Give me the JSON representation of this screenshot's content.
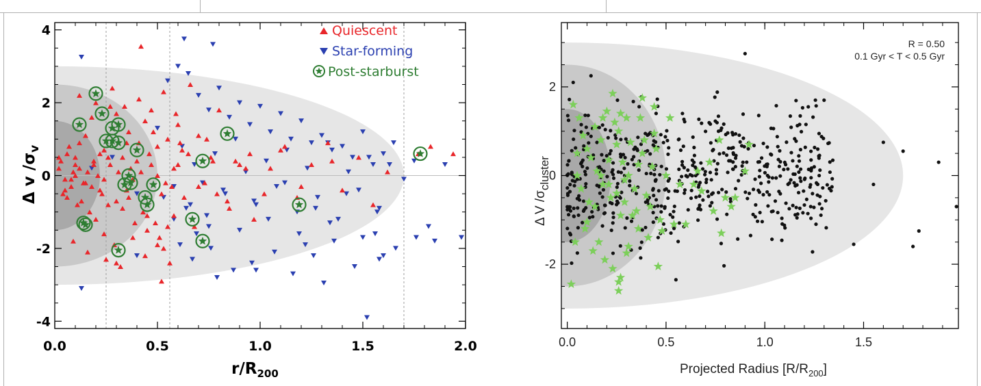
{
  "colors": {
    "quiescent": "#e8262a",
    "star_forming": "#2a3fb0",
    "post_starburst": "#2e7d32",
    "galaxy_dot": "#111111",
    "green_star": "#7ccf5a",
    "zone_inner": "#a9a9a9",
    "zone_middle": "#c9c9c9",
    "zone_outer": "#e6e6e6"
  },
  "chart_data": [
    {
      "type": "scatter",
      "xlabel": "r/R",
      "xlabel_sub": "200",
      "ylabel_main": "Δ v /σ",
      "ylabel_sub": "v",
      "xlim": [
        0.0,
        2.0
      ],
      "ylim": [
        -4.2,
        4.2
      ],
      "x_ticks": [
        "0.0",
        "0.5",
        "1.0",
        "1.5",
        "2.0"
      ],
      "y_ticks": [
        "-4",
        "-2",
        "0",
        "2",
        "4"
      ],
      "legend_position": "top-right",
      "legend": [
        "Quiescent",
        "Star-forming",
        "Post-starburst"
      ],
      "zones": [
        {
          "x_max": 1.7,
          "y_half": 3.0
        },
        {
          "x_max": 0.5,
          "y_half": 2.5
        },
        {
          "x_max": 0.22,
          "y_half": 1.5
        }
      ],
      "dashed_x": [
        0.25,
        0.56,
        1.7
      ],
      "series": [
        {
          "name": "Post-starburst",
          "x": [
            0.2,
            0.23,
            0.12,
            0.28,
            0.31,
            0.25,
            0.28,
            0.31,
            0.4,
            0.84,
            0.72,
            0.36,
            0.34,
            0.37,
            0.48,
            0.44,
            0.45,
            0.67,
            0.72,
            0.14,
            0.15,
            0.31,
            1.19,
            1.78
          ],
          "y": [
            2.25,
            1.7,
            1.4,
            1.3,
            1.4,
            0.95,
            0.95,
            0.9,
            0.7,
            1.15,
            0.4,
            0.0,
            -0.25,
            -0.2,
            -0.25,
            -0.6,
            -0.8,
            -1.2,
            -1.8,
            -1.3,
            -1.35,
            -2.05,
            -0.8,
            0.6
          ]
        },
        {
          "name": "Quiescent",
          "x": [
            0.42,
            0.02,
            0.05,
            0.03,
            0.06,
            0.08,
            0.09,
            0.1,
            0.12,
            0.15,
            0.18,
            0.19,
            0.21,
            0.22,
            0.24,
            0.27,
            0.3,
            0.33,
            0.36,
            0.38,
            0.41,
            0.44,
            0.47,
            0.5,
            0.52,
            0.55,
            0.58,
            0.6,
            0.63,
            0.65,
            0.7,
            0.73,
            0.77,
            0.8,
            0.85,
            0.9,
            0.95,
            0.13,
            0.17,
            0.2,
            0.24,
            0.29,
            0.33,
            0.39,
            0.45,
            0.53,
            0.58,
            0.05,
            0.1,
            0.14,
            0.07,
            0.11,
            0.16,
            0.23,
            0.26,
            0.3,
            0.35,
            0.37,
            0.43,
            0.48,
            0.51,
            0.57,
            0.62,
            0.68,
            0.74,
            0.79,
            0.88,
            0.97,
            1.05,
            1.12,
            1.18,
            1.25,
            1.33,
            1.4,
            1.48,
            1.55,
            1.62,
            1.77,
            1.83,
            1.94,
            0.02,
            0.04,
            0.08,
            0.12,
            0.18,
            0.22,
            0.26,
            0.31,
            0.36,
            0.4,
            0.45,
            0.5,
            0.55,
            0.6,
            0.12,
            0.2,
            0.28,
            0.34,
            0.41,
            0.47,
            0.53,
            0.59,
            0.66,
            0.09,
            0.16,
            0.25,
            0.32,
            0.38,
            0.44,
            0.5,
            0.56,
            0.14,
            0.3,
            0.52,
            0.49,
            0.06,
            0.1,
            0.15,
            0.19,
            0.24,
            0.27,
            0.35,
            0.42,
            0.46,
            0.54,
            0.61,
            0.7,
            0.76,
            0.84,
            0.93,
            1.02,
            1.1,
            1.2,
            1.35
          ],
          "y": [
            3.55,
            0.2,
            -0.1,
            0.4,
            0.6,
            -0.3,
            0.1,
            0.5,
            0.9,
            1.1,
            1.6,
            0.3,
            0.0,
            -0.4,
            0.7,
            1.9,
            1.7,
            0.5,
            1.2,
            -0.1,
            0.9,
            1.5,
            0.3,
            0.8,
            -0.5,
            1.0,
            0.2,
            1.4,
            -0.6,
            0.6,
            1.1,
            -0.2,
            0.4,
            1.8,
            -0.9,
            0.3,
            0.6,
            -0.7,
            -1.0,
            -1.2,
            -1.6,
            -1.9,
            -0.9,
            -1.3,
            -1.5,
            -2.0,
            -1.1,
            -0.4,
            0.3,
            -0.2,
            0.8,
            -0.8,
            0.1,
            -0.5,
            0.5,
            -0.7,
            0.9,
            0.2,
            -1.0,
            1.2,
            -1.7,
            -0.3,
            0.7,
            -1.4,
            1.0,
            -0.5,
            0.4,
            -1.2,
            0.2,
            0.8,
            -0.6,
            0.3,
            0.9,
            -0.4,
            0.5,
            -0.8,
            0.1,
            0.6,
            0.8,
            0.6,
            0.5,
            -0.5,
            -0.1,
            0.2,
            -0.3,
            0.6,
            -0.8,
            0.1,
            -0.6,
            0.4,
            -1.1,
            0.0,
            -1.4,
            0.3,
            2.2,
            2.0,
            2.4,
            1.9,
            2.1,
            1.8,
            2.3,
            1.7,
            2.5,
            -1.8,
            -2.1,
            -2.3,
            -2.5,
            -1.7,
            -2.2,
            -1.9,
            -2.4,
            -0.2,
            -2.4,
            -2.9,
            -1.3,
            -0.6,
            0.0,
            -0.2,
            0.4,
            -0.1,
            0.3,
            -0.4,
            0.1,
            0.6,
            -0.2,
            0.9,
            -0.3,
            0.5,
            -0.7,
            0.2,
            -0.5,
            0.7,
            -0.3,
            0.4
          ]
        },
        {
          "name": "Star-forming",
          "x": [
            0.13,
            0.63,
            0.77,
            0.6,
            0.65,
            0.18,
            0.28,
            0.4,
            0.5,
            0.55,
            0.7,
            0.75,
            0.8,
            0.85,
            0.9,
            0.95,
            1.0,
            1.05,
            1.1,
            1.15,
            1.2,
            1.25,
            1.3,
            1.35,
            1.4,
            1.45,
            1.5,
            1.55,
            1.6,
            1.65,
            1.7,
            1.75,
            1.85,
            1.9,
            1.98,
            0.62,
            0.68,
            0.72,
            0.78,
            0.83,
            0.88,
            0.93,
            0.98,
            1.03,
            1.08,
            1.13,
            1.18,
            1.23,
            1.28,
            1.33,
            1.38,
            1.43,
            1.48,
            1.53,
            1.58,
            1.63,
            0.58,
            0.66,
            0.74,
            0.82,
            0.9,
            0.97,
            1.04,
            1.12,
            1.19,
            1.27,
            1.34,
            1.42,
            1.5,
            1.57,
            0.61,
            0.67,
            0.76,
            0.87,
            0.96,
            1.07,
            1.16,
            1.26,
            1.36,
            1.46,
            1.56,
            1.66,
            1.76,
            0.13,
            0.4,
            0.79,
            0.98,
            1.31,
            1.52,
            1.6,
            0.53,
            0.58,
            0.64,
            0.69,
            0.75,
            1.22,
            1.58,
            1.82
          ],
          "y": [
            3.25,
            3.75,
            3.6,
            3.0,
            2.8,
            0.2,
            0.5,
            -0.5,
            1.3,
            2.6,
            2.2,
            1.8,
            2.4,
            1.6,
            2.0,
            1.4,
            1.9,
            1.2,
            1.7,
            1.0,
            1.5,
            0.9,
            1.1,
            0.7,
            0.8,
            0.5,
            1.2,
            0.3,
            0.6,
            0.9,
            -0.1,
            0.4,
            -1.8,
            0.3,
            -1.7,
            0.8,
            0.3,
            -0.2,
            0.6,
            -0.5,
            1.0,
            0.1,
            -0.8,
            0.4,
            -0.3,
            0.7,
            -1.0,
            0.2,
            -0.6,
            0.9,
            -1.2,
            0.1,
            -0.4,
            0.5,
            -0.9,
            0.3,
            -0.3,
            -0.8,
            -1.1,
            -0.4,
            -1.5,
            -0.7,
            -1.2,
            -0.2,
            -1.6,
            -0.9,
            -1.3,
            -0.5,
            -1.7,
            -1.0,
            -1.9,
            -2.3,
            -2.0,
            -2.6,
            -2.4,
            -2.1,
            -2.7,
            -2.2,
            -1.8,
            -2.5,
            -1.6,
            -2.0,
            -1.7,
            -3.1,
            -2.2,
            -2.8,
            -2.6,
            -2.95,
            -3.9,
            -2.2,
            -0.6,
            -1.2,
            -0.9,
            -1.6,
            -1.4,
            -1.9,
            -2.3,
            -1.4
          ]
        }
      ]
    },
    {
      "type": "scatter",
      "title_lines": [
        "R = 0.50",
        "0.1 Gyr < T < 0.5 Gyr"
      ],
      "xlabel": "Projected Radius [R/R",
      "xlabel_sub": "200",
      "xlabel_end": "]",
      "ylabel_main": "Δ V /σ",
      "ylabel_sub": "cluster",
      "xlim": [
        -0.03,
        1.98
      ],
      "ylim": [
        -3.45,
        3.45
      ],
      "x_ticks": [
        "0.0",
        "0.5",
        "1.0",
        "1.5"
      ],
      "y_ticks": [
        "-2",
        "0",
        "2"
      ],
      "zones": [
        {
          "x_max": 1.7,
          "y_half": 3.0
        },
        {
          "x_max": 0.5,
          "y_half": 2.5
        },
        {
          "x_max": 0.22,
          "y_half": 1.5
        }
      ],
      "dot_seed": 7,
      "dot_count": 560,
      "series": [
        {
          "name": "black dots (outliers)",
          "x": [
            0.9,
            1.88,
            1.97,
            1.7,
            1.78,
            1.75,
            1.45,
            1.55,
            1.6,
            1.3,
            1.22,
            0.55,
            0.12,
            0.03
          ],
          "y": [
            2.75,
            0.3,
            -0.7,
            0.55,
            -1.25,
            -1.6,
            -1.55,
            -0.2,
            0.75,
            1.7,
            1.55,
            -2.35,
            2.25,
            2.1
          ]
        },
        {
          "name": "green stars",
          "x": [
            0.03,
            0.06,
            0.08,
            0.05,
            0.1,
            0.12,
            0.14,
            0.15,
            0.17,
            0.18,
            0.2,
            0.21,
            0.22,
            0.24,
            0.25,
            0.26,
            0.27,
            0.28,
            0.29,
            0.3,
            0.31,
            0.32,
            0.34,
            0.35,
            0.37,
            0.38,
            0.39,
            0.4,
            0.42,
            0.43,
            0.44,
            0.45,
            0.47,
            0.5,
            0.52,
            0.54,
            0.57,
            0.6,
            0.64,
            0.66,
            0.68,
            0.72,
            0.74,
            0.77,
            0.78,
            0.8,
            0.83,
            0.85,
            0.9,
            0.92,
            0.02,
            0.04,
            0.09,
            0.11,
            0.13,
            0.16,
            0.19,
            0.23,
            0.27,
            0.31,
            0.33,
            0.36,
            0.41,
            0.46,
            0.48,
            0.21,
            0.25,
            0.26,
            0.29,
            0.17,
            0.14,
            0.07,
            0.1,
            0.23,
            0.18,
            0.27,
            0.36,
            0.44,
            0.05,
            0.26,
            0.3,
            0.38
          ],
          "y": [
            1.6,
            1.3,
            0.9,
            0.5,
            0.6,
            0.4,
            1.1,
            0.1,
            0.8,
            -0.2,
            1.45,
            0.35,
            -0.5,
            1.2,
            0.7,
            1.0,
            -0.9,
            0.3,
            -0.6,
            1.3,
            0.0,
            0.75,
            -0.3,
            -0.8,
            1.3,
            1.75,
            0.8,
            -0.45,
            -0.7,
            0.2,
            1.55,
            0.6,
            -1.0,
            0.0,
            1.3,
            -1.1,
            -0.2,
            -1.1,
            -0.2,
            0.1,
            -0.35,
            0.3,
            -0.8,
            0.8,
            -1.3,
            -0.5,
            -0.7,
            -0.5,
            0.1,
            0.7,
            -2.45,
            -1.5,
            -1.2,
            -0.6,
            -1.7,
            -1.5,
            -1.9,
            -2.1,
            -2.3,
            -1.6,
            -0.9,
            -1.2,
            -1.4,
            -2.05,
            -1.25,
            -0.2,
            -0.4,
            -2.6,
            -0.1,
            0.0,
            -0.7,
            -0.3,
            -1.05,
            1.85,
            1.3,
            1.4,
            0.25,
            0.95,
            0.0,
            -2.4,
            -1.75,
            0.5
          ]
        }
      ]
    }
  ]
}
